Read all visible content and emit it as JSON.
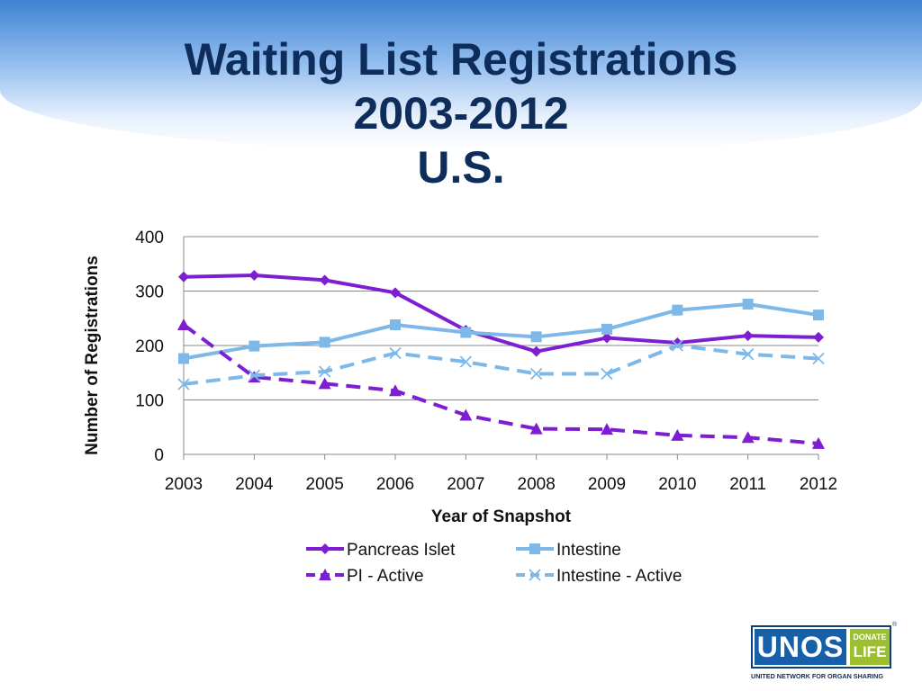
{
  "slide": {
    "title_lines": [
      "Waiting List Registrations",
      "2003-2012",
      "U.S."
    ]
  },
  "chart_data": {
    "type": "line",
    "x": [
      2003,
      2004,
      2005,
      2006,
      2007,
      2008,
      2009,
      2010,
      2011,
      2012
    ],
    "xlabel": "Year of Snapshot",
    "ylabel": "Number of Registrations",
    "ylim": [
      0,
      400
    ],
    "yticks": [
      0,
      100,
      200,
      300,
      400
    ],
    "grid": true,
    "legend_position": "bottom",
    "series": [
      {
        "name": "Pancreas Islet",
        "color": "#7d1fd1",
        "marker": "diamond",
        "dashed": false,
        "values": [
          326,
          329,
          320,
          297,
          228,
          189,
          214,
          205,
          218,
          215
        ]
      },
      {
        "name": "Intestine",
        "color": "#7db8e8",
        "marker": "square",
        "dashed": false,
        "values": [
          176,
          199,
          206,
          238,
          224,
          216,
          230,
          265,
          276,
          256
        ]
      },
      {
        "name": "PI - Active",
        "color": "#7d1fd1",
        "marker": "triangle",
        "dashed": true,
        "values": [
          238,
          142,
          130,
          117,
          72,
          47,
          46,
          35,
          31,
          20
        ]
      },
      {
        "name": "Intestine - Active",
        "color": "#7db8e8",
        "marker": "x",
        "dashed": true,
        "values": [
          129,
          145,
          152,
          186,
          170,
          148,
          148,
          200,
          184,
          176
        ]
      }
    ]
  },
  "logo": {
    "unos": "UNOS",
    "donate": "DONATE",
    "life": "LIFE",
    "registered": "®",
    "tagline": "UNITED NETWORK FOR ORGAN SHARING"
  }
}
